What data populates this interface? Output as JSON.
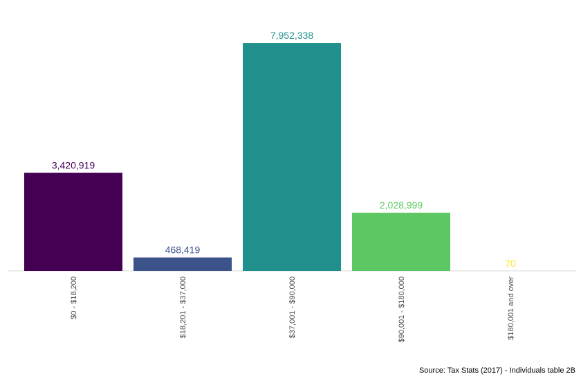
{
  "chart_data": {
    "type": "bar",
    "categories": [
      "$0 - $18,200",
      "$18,201 - $37,000",
      "$37,001 - $90,000",
      "$90,001 - $180,000",
      "$180,001 and over"
    ],
    "values": [
      3420919,
      468419,
      7952338,
      2028999,
      70
    ],
    "value_labels": [
      "3,420,919",
      "468,419",
      "7,952,338",
      "2,028,999",
      "70"
    ],
    "colors": [
      "#440154",
      "#3B528B",
      "#21908C",
      "#5DC863",
      "#FDE725"
    ],
    "title": "",
    "xlabel": "",
    "ylabel": "",
    "ylim": [
      0,
      8800000
    ],
    "grid": false,
    "legend": "none",
    "tick_label_rotation": -90
  },
  "caption": "Source: Tax Stats (2017) - Individuals table 2B"
}
